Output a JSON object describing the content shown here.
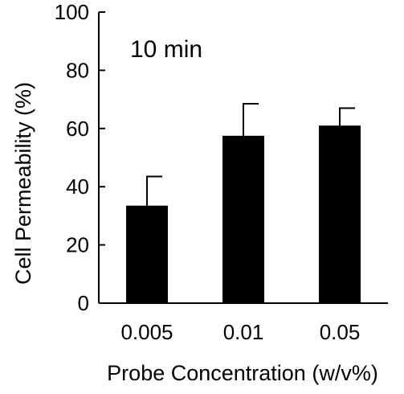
{
  "chart_data": {
    "type": "bar",
    "categories": [
      "0.005",
      "0.01",
      "0.05"
    ],
    "values": [
      33.5,
      57.5,
      61
    ],
    "error": [
      10,
      11,
      6
    ],
    "annotation": "10 min",
    "xlabel": "Probe Concentration (w/v%)",
    "ylabel": "Cell Permeability (%)",
    "ylim": [
      0,
      100
    ],
    "yticks": [
      0,
      20,
      40,
      60,
      80,
      100
    ],
    "grid": false,
    "bar_color": "#000000"
  }
}
